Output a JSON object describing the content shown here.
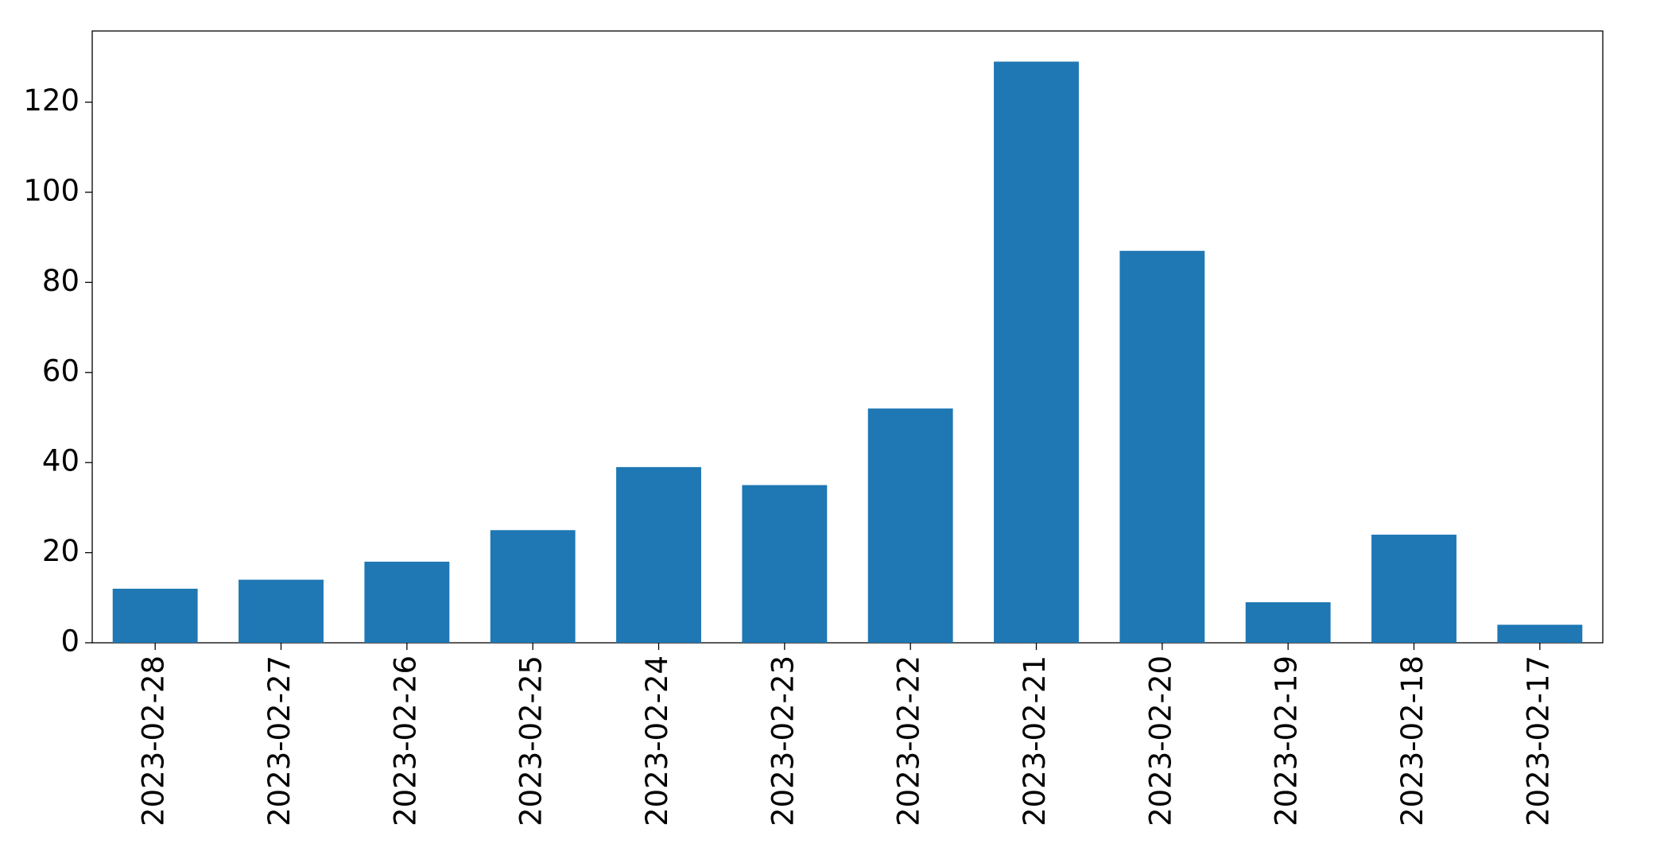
{
  "chart_data": {
    "type": "bar",
    "categories": [
      "2023-02-28",
      "2023-02-27",
      "2023-02-26",
      "2023-02-25",
      "2023-02-24",
      "2023-02-23",
      "2023-02-22",
      "2023-02-21",
      "2023-02-20",
      "2023-02-19",
      "2023-02-18",
      "2023-02-17"
    ],
    "values": [
      12,
      14,
      18,
      25,
      39,
      35,
      52,
      129,
      87,
      9,
      24,
      4
    ],
    "color": "#1f77b4",
    "ylim": [
      0,
      135.8
    ],
    "yticks": [
      0,
      20,
      40,
      60,
      80,
      100,
      120
    ],
    "grid": false
  }
}
